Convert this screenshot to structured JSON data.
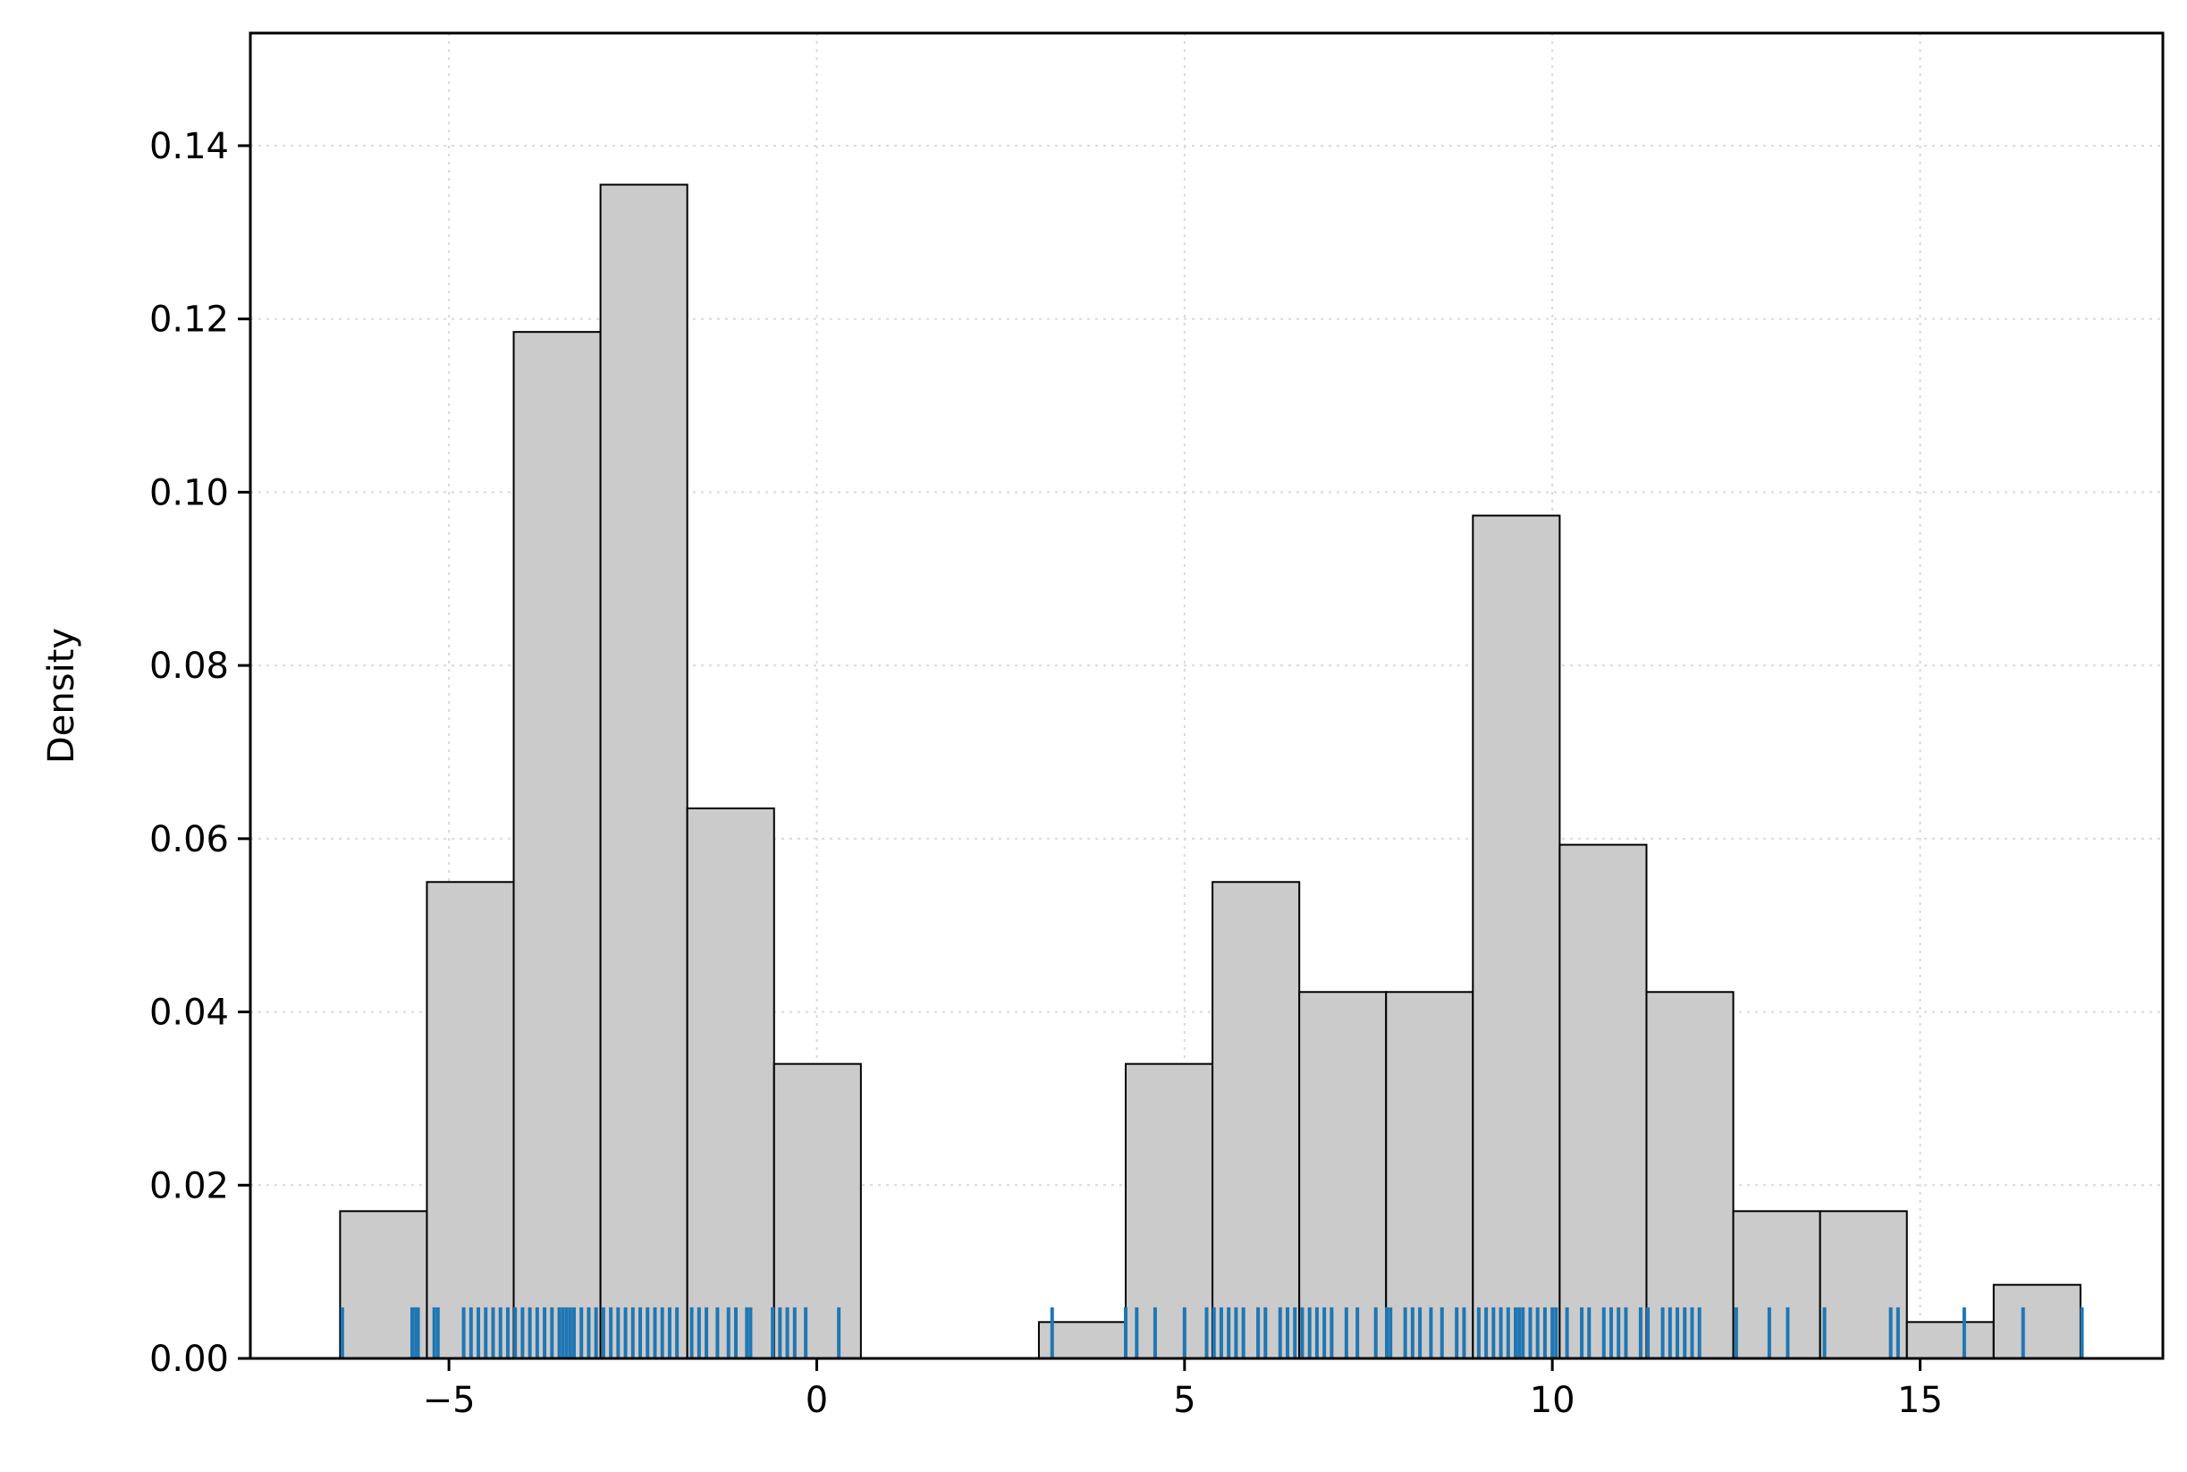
{
  "chart_data": {
    "type": "bar",
    "subtype": "histogram-with-rug",
    "title": "",
    "xlabel": "",
    "ylabel": "Density",
    "xlim": [
      -7.7,
      18.3
    ],
    "ylim": [
      0,
      0.153
    ],
    "x_ticks": [
      -5,
      0,
      5,
      10,
      15
    ],
    "x_tick_labels": [
      "−5",
      "0",
      "5",
      "10",
      "15"
    ],
    "y_ticks": [
      0.0,
      0.02,
      0.04,
      0.06,
      0.08,
      0.1,
      0.12,
      0.14
    ],
    "y_tick_labels": [
      "0.00",
      "0.02",
      "0.04",
      "0.06",
      "0.08",
      "0.10",
      "0.12",
      "0.14"
    ],
    "grid": true,
    "bin_width": 1.18,
    "bins": [
      {
        "x0": -6.48,
        "x1": -5.3,
        "density": 0.017
      },
      {
        "x0": -5.3,
        "x1": -4.12,
        "density": 0.055
      },
      {
        "x0": -4.12,
        "x1": -2.94,
        "density": 0.1185
      },
      {
        "x0": -2.94,
        "x1": -1.76,
        "density": 0.1355
      },
      {
        "x0": -1.76,
        "x1": -0.58,
        "density": 0.0635
      },
      {
        "x0": -0.58,
        "x1": 0.6,
        "density": 0.034
      },
      {
        "x0": 3.02,
        "x1": 4.2,
        "density": 0.0042
      },
      {
        "x0": 4.2,
        "x1": 5.38,
        "density": 0.034
      },
      {
        "x0": 5.38,
        "x1": 6.56,
        "density": 0.055
      },
      {
        "x0": 6.56,
        "x1": 7.74,
        "density": 0.0423
      },
      {
        "x0": 7.74,
        "x1": 8.92,
        "density": 0.0423
      },
      {
        "x0": 8.92,
        "x1": 10.1,
        "density": 0.0973
      },
      {
        "x0": 10.1,
        "x1": 11.28,
        "density": 0.0593
      },
      {
        "x0": 11.28,
        "x1": 12.46,
        "density": 0.0423
      },
      {
        "x0": 12.46,
        "x1": 13.64,
        "density": 0.017
      },
      {
        "x0": 13.64,
        "x1": 14.82,
        "density": 0.017
      },
      {
        "x0": 14.82,
        "x1": 16.0,
        "density": 0.0042
      },
      {
        "x0": 16.0,
        "x1": 17.18,
        "density": 0.0085
      }
    ],
    "rug_points": [
      -6.45,
      -5.5,
      -5.45,
      -5.42,
      -5.2,
      -5.15,
      -4.8,
      -4.7,
      -4.6,
      -4.5,
      -4.4,
      -4.3,
      -4.2,
      -4.1,
      -4.0,
      -3.9,
      -3.8,
      -3.7,
      -3.6,
      -3.5,
      -3.45,
      -3.4,
      -3.35,
      -3.3,
      -3.2,
      -3.1,
      -3.0,
      -2.9,
      -2.8,
      -2.7,
      -2.6,
      -2.5,
      -2.4,
      -2.3,
      -2.2,
      -2.1,
      -2.0,
      -1.9,
      -1.7,
      -1.6,
      -1.5,
      -1.35,
      -1.2,
      -1.1,
      -0.95,
      -0.9,
      -0.6,
      -0.5,
      -0.4,
      -0.3,
      -0.15,
      0.3,
      3.2,
      4.2,
      4.35,
      4.6,
      5.0,
      5.3,
      5.4,
      5.5,
      5.6,
      5.7,
      5.8,
      6.0,
      6.1,
      6.3,
      6.4,
      6.5,
      6.6,
      6.7,
      6.8,
      6.9,
      7.0,
      7.2,
      7.35,
      7.6,
      7.75,
      7.8,
      8.0,
      8.1,
      8.2,
      8.35,
      8.5,
      8.7,
      8.8,
      9.0,
      9.1,
      9.2,
      9.3,
      9.4,
      9.5,
      9.55,
      9.6,
      9.7,
      9.8,
      9.9,
      10.0,
      10.05,
      10.2,
      10.4,
      10.5,
      10.7,
      10.8,
      10.9,
      11.0,
      11.2,
      11.3,
      11.5,
      11.6,
      11.7,
      11.8,
      11.9,
      12.0,
      12.5,
      12.95,
      13.2,
      13.7,
      14.6,
      14.7,
      15.6,
      16.4,
      17.2
    ]
  }
}
